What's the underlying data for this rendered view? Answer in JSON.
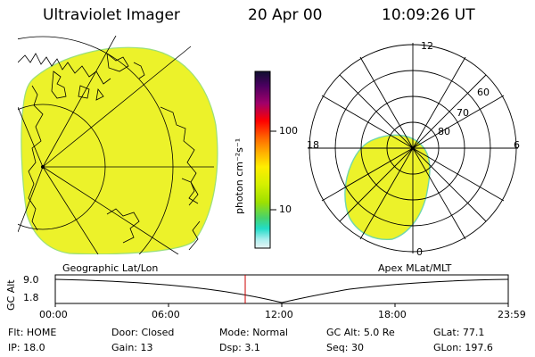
{
  "header": {
    "instrument": "Ultraviolet Imager",
    "date": "20 Apr 00",
    "time": "10:09:26 UT"
  },
  "colorbar": {
    "unit_label": "photon cm⁻²s⁻¹",
    "ticks": [
      "100",
      "10"
    ],
    "colors": [
      "#101030",
      "#4a0060",
      "#a0006a",
      "#ff0000",
      "#ff6a00",
      "#ffb000",
      "#ffee00",
      "#d4f000",
      "#9ee000",
      "#46d26e",
      "#22dcc8",
      "#aaeeee",
      "#e8f4f4"
    ]
  },
  "geo_panel": {
    "label": "Geographic Lat/Lon",
    "fill_color": "#ecf22a"
  },
  "polar_panel": {
    "label": "Apex MLat/MLT",
    "mlt_labels": {
      "top": "12",
      "left": "18",
      "right": "6",
      "bottom": "0"
    },
    "lat_labels": [
      "60",
      "70",
      "80"
    ],
    "fill_color": "#ecf22a"
  },
  "altitude_plot": {
    "axis_label": "GC Alt",
    "y_ticks": [
      "9.0",
      "1.8"
    ],
    "x_ticks": [
      "00:00",
      "06:00",
      "12:00",
      "18:00",
      "23:59"
    ],
    "marker_color": "#cc0000"
  },
  "status": {
    "row1": [
      {
        "key": "Flt:",
        "value": "HOME"
      },
      {
        "key": "Door:",
        "value": "Closed"
      },
      {
        "key": "Mode:",
        "value": "Normal"
      },
      {
        "key": "GC Alt:",
        "value": "5.0 Re"
      },
      {
        "key": "GLat:",
        "value": "77.1"
      }
    ],
    "row2": [
      {
        "key": "IP:",
        "value": "18.0"
      },
      {
        "key": "Gain:",
        "value": "13"
      },
      {
        "key": "Dsp:",
        "value": "3.1"
      },
      {
        "key": "Seq:",
        "value": "30"
      },
      {
        "key": "GLon:",
        "value": "197.6"
      }
    ]
  }
}
